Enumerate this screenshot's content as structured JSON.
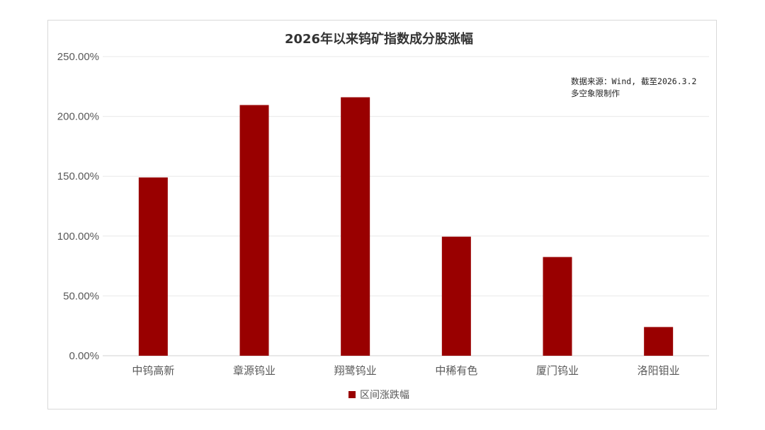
{
  "chart_data": {
    "type": "bar",
    "title": "2026年以来钨矿指数成分股涨幅",
    "categories": [
      "中钨高新",
      "章源钨业",
      "翔鹭钨业",
      "中稀有色",
      "厦门钨业",
      "洛阳钼业"
    ],
    "series": [
      {
        "name": "区间涨跌幅",
        "values": [
          149.0,
          209.5,
          216.0,
          99.5,
          82.5,
          24.0
        ],
        "color": "#990000"
      }
    ],
    "ylim": [
      0,
      250
    ],
    "yticks": [
      0,
      50,
      100,
      150,
      200,
      250
    ],
    "ytick_labels": [
      "0.00%",
      "50.00%",
      "100.00%",
      "150.00%",
      "200.00%",
      "250.00%"
    ],
    "grid": true,
    "legend_position": "bottom",
    "annotations": [
      "数据来源：Wind, 截至2026.3.2",
      "多空象限制作"
    ]
  }
}
